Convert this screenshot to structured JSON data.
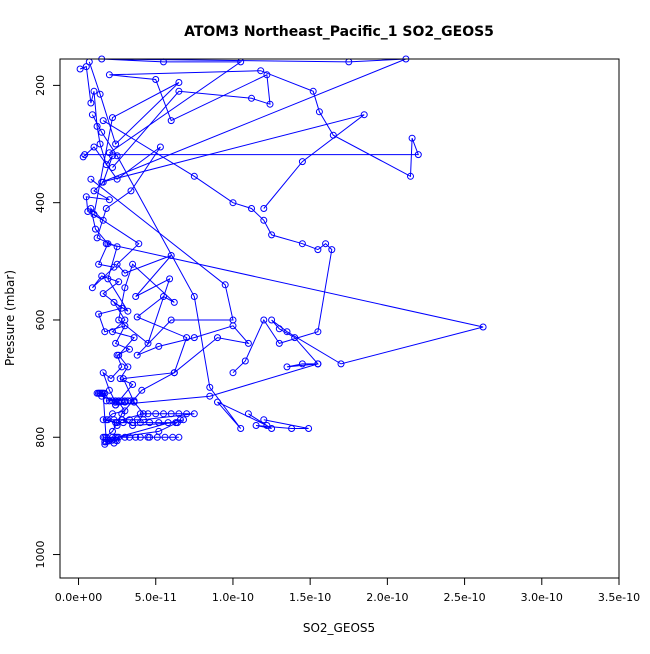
{
  "chart_data": {
    "type": "scatter",
    "title": "ATOM3 Northeast_Pacific_1 SO2_GEOS5",
    "xlabel": "SO2_GEOS5",
    "ylabel": "Pressure (mbar)",
    "xlim": [
      -1.2e-11,
      3.5e-10
    ],
    "ylim": [
      1040,
      155
    ],
    "y_reversed": true,
    "grid": false,
    "x_ticks": [
      {
        "value": 0,
        "label": "0.0e+00"
      },
      {
        "value": 5e-11,
        "label": "5.0e-11"
      },
      {
        "value": 1e-10,
        "label": "1.0e-10"
      },
      {
        "value": 1.5e-10,
        "label": "1.5e-10"
      },
      {
        "value": 2e-10,
        "label": "2.0e-10"
      },
      {
        "value": 2.5e-10,
        "label": "2.5e-10"
      },
      {
        "value": 3e-10,
        "label": "3.0e-10"
      },
      {
        "value": 3.5e-10,
        "label": "3.5e-10"
      }
    ],
    "y_ticks": [
      {
        "value": 200,
        "label": "200"
      },
      {
        "value": 400,
        "label": "400"
      },
      {
        "value": 600,
        "label": "600"
      },
      {
        "value": 800,
        "label": "800"
      },
      {
        "value": 1000,
        "label": "1000"
      }
    ],
    "colors": {
      "series": "#0000ff"
    },
    "series": [
      {
        "style": "line+markers",
        "x": [
          1e-12,
          5e-12,
          8e-12,
          1e-11,
          1.2e-11,
          1.4e-11,
          1.8e-11,
          2.2e-11,
          1.6e-11,
          1e-11,
          2e-11,
          5e-12,
          6e-12,
          1.6e-11,
          8e-12,
          1.1e-11,
          1.9e-11,
          1.3e-11,
          2.3e-11,
          9e-12,
          1.5e-11,
          2.6e-11,
          1.6e-11,
          2.8e-11,
          1.3e-11,
          1.7e-11,
          3e-11,
          2.4e-11,
          3.3e-11,
          2.5e-11,
          2.8e-11,
          2.1e-11,
          1.6e-11,
          2e-11,
          2.4e-11,
          1.5e-11,
          2.6e-11,
          3e-11,
          2.2e-11,
          1.8e-11,
          2.5e-11,
          2.2e-11,
          1.7e-11,
          1.9e-11,
          2.6e-11,
          2.3e-11,
          2.4e-11,
          1.7e-11,
          2e-11,
          1.7e-11
        ],
        "y": [
          172,
          168,
          230,
          210,
          270,
          300,
          335,
          320,
          365,
          380,
          395,
          390,
          415,
          430,
          410,
          445,
          470,
          505,
          510,
          545,
          525,
          535,
          555,
          580,
          590,
          620,
          610,
          640,
          650,
          660,
          680,
          700,
          690,
          720,
          740,
          730,
          740,
          755,
          760,
          770,
          775,
          790,
          800,
          805,
          800,
          810,
          805,
          808,
          806,
          812
        ]
      },
      {
        "style": "line+markers",
        "x": [
          7e-12,
          1.4e-11,
          2.4e-11,
          6.5e-11,
          2.2e-11,
          1e-11,
          3.9e-11,
          2.5e-11,
          3e-11,
          6e-11,
          3.7e-11,
          5.9e-11,
          4.5e-11,
          2.6e-11,
          3e-11,
          3.5e-11,
          6.2e-11,
          5.5e-11,
          3.8e-11,
          7e-11,
          6.2e-11,
          2.9e-11,
          3.6e-11,
          4.2e-11,
          2.8e-11,
          3.5e-11,
          6.4e-11,
          5.2e-11,
          2.5e-11,
          6.6e-11
        ],
        "y": [
          160,
          215,
          300,
          195,
          255,
          420,
          470,
          505,
          520,
          490,
          560,
          530,
          640,
          600,
          545,
          505,
          570,
          560,
          595,
          630,
          690,
          700,
          740,
          760,
          770,
          780,
          775,
          790,
          800,
          770
        ]
      },
      {
        "style": "line+markers",
        "x": [
          3e-12,
          1e-11,
          2.5e-11,
          5.3e-11,
          3.4e-11,
          1.8e-11,
          1.2e-11,
          2.5e-11,
          1.9e-11,
          3.2e-11,
          2.3e-11,
          3e-11,
          2.2e-11,
          3.6e-11,
          2.6e-11,
          3.2e-11,
          2.7e-11,
          3.5e-11,
          2.4e-11,
          3e-11
        ],
        "y": [
          322,
          305,
          360,
          305,
          380,
          410,
          460,
          475,
          530,
          585,
          570,
          600,
          620,
          630,
          660,
          680,
          700,
          710,
          745,
          740
        ]
      },
      {
        "style": "line+markers",
        "x": [
          9e-12,
          1.5e-11,
          2.5e-11,
          7.5e-11,
          8.5e-11,
          1.05e-10,
          9e-11,
          1.22e-10,
          1.1e-10,
          1.25e-10,
          1.15e-10,
          1.38e-10,
          1.49e-10,
          1.2e-10
        ],
        "y": [
          250,
          280,
          320,
          560,
          715,
          785,
          740,
          780,
          760,
          785,
          780,
          785,
          785,
          770
        ]
      },
      {
        "style": "line+markers",
        "x": [
          1.6e-11,
          7.5e-11,
          1e-10,
          1.12e-10,
          1.2e-10,
          1.25e-10,
          1.45e-10,
          1.55e-10,
          1.6e-10,
          1.64e-10,
          1.55e-10,
          1.3e-10,
          1.2e-10,
          1.08e-10,
          1e-10
        ],
        "y": [
          260,
          355,
          400,
          410,
          430,
          455,
          470,
          480,
          470,
          480,
          620,
          640,
          600,
          670,
          690
        ]
      },
      {
        "style": "line+markers",
        "x": [
          4e-12,
          2.2e-10,
          2.16e-10,
          2.15e-10,
          1.65e-10,
          1.56e-10,
          1.52e-10,
          1.18e-10,
          2e-11,
          5e-11,
          6e-11,
          1.22e-10,
          1.24e-10,
          1.12e-10,
          6.5e-11,
          2.2e-11
        ],
        "y": [
          318,
          318,
          290,
          355,
          285,
          245,
          210,
          175,
          182,
          190,
          260,
          182,
          232,
          222,
          210,
          340
        ]
      },
      {
        "style": "line+markers",
        "x": [
          1.8e-11,
          2.62e-10,
          1.7e-10,
          1.35e-10,
          1.25e-10,
          1.3e-10,
          1.4e-10,
          1.55e-10,
          1.45e-10,
          1.35e-10,
          1.55e-10,
          8.5e-11,
          2.4e-11
        ],
        "y": [
          470,
          612,
          675,
          620,
          600,
          615,
          630,
          675,
          675,
          680,
          675,
          730,
          745
        ]
      },
      {
        "style": "line+markers",
        "x": [
          8e-12,
          9.5e-11,
          1e-10,
          6e-11,
          3.8e-11,
          5.2e-11,
          7.5e-11,
          1e-10,
          1.1e-10,
          9e-11,
          6.2e-11,
          4.1e-11,
          2.8e-11,
          2.5e-11
        ],
        "y": [
          360,
          540,
          600,
          600,
          660,
          645,
          630,
          610,
          640,
          630,
          690,
          720,
          760,
          780
        ]
      },
      {
        "style": "line+markers",
        "x": [
          1.8e-11,
          2.2e-11,
          2.6e-11,
          3e-11,
          3.4e-11,
          3.6e-11,
          3.2e-11,
          2.8e-11,
          2.4e-11,
          2e-11,
          1.7e-11,
          1.6e-11,
          1.5e-11,
          1.4e-11,
          1.3e-11,
          1.2e-11,
          1.3e-11,
          1.4e-11,
          1.5e-11,
          1.6e-11,
          1.8e-11,
          2e-11,
          2.2e-11,
          2.5e-11
        ],
        "y": [
          738,
          738,
          738,
          738,
          738,
          738,
          738,
          738,
          738,
          738,
          725,
          725,
          725,
          725,
          725,
          725,
          725,
          725,
          725,
          725,
          808,
          806,
          805,
          806
        ]
      },
      {
        "style": "line+markers",
        "x": [
          4e-11,
          4.5e-11,
          5e-11,
          5.5e-11,
          6e-11,
          6.5e-11,
          7e-11,
          7.5e-11,
          4.2e-11,
          3.8e-11,
          3.3e-11,
          2.8e-11,
          2.3e-11,
          1.9e-11,
          1.6e-11,
          2.4e-11,
          2.9e-11,
          3.5e-11,
          4e-11,
          4.6e-11,
          5.2e-11,
          5.8e-11,
          6.3e-11,
          6.8e-11
        ],
        "y": [
          760,
          760,
          760,
          760,
          760,
          760,
          760,
          760,
          770,
          770,
          770,
          770,
          770,
          770,
          770,
          775,
          775,
          775,
          775,
          775,
          775,
          775,
          775,
          770
        ]
      },
      {
        "style": "line+markers",
        "x": [
          1.6e-11,
          2.4e-11,
          3.3e-11,
          4e-11,
          4.6e-11,
          5.1e-11,
          5.6e-11,
          6.1e-11,
          6.5e-11,
          4.5e-11,
          3.7e-11,
          3e-11,
          2.2e-11,
          1.8e-11
        ],
        "y": [
          800,
          800,
          800,
          800,
          800,
          800,
          800,
          800,
          800,
          800,
          800,
          800,
          800,
          800
        ]
      },
      {
        "style": "line+markers",
        "x": [
          2e-11,
          1.05e-10,
          5.5e-11,
          1.5e-11,
          1.75e-10,
          2.12e-10,
          1.5e-11,
          1.85e-10,
          1.45e-10,
          1.2e-10
        ],
        "y": [
          315,
          160,
          160,
          155,
          160,
          155,
          365,
          250,
          330,
          410
        ]
      }
    ]
  }
}
